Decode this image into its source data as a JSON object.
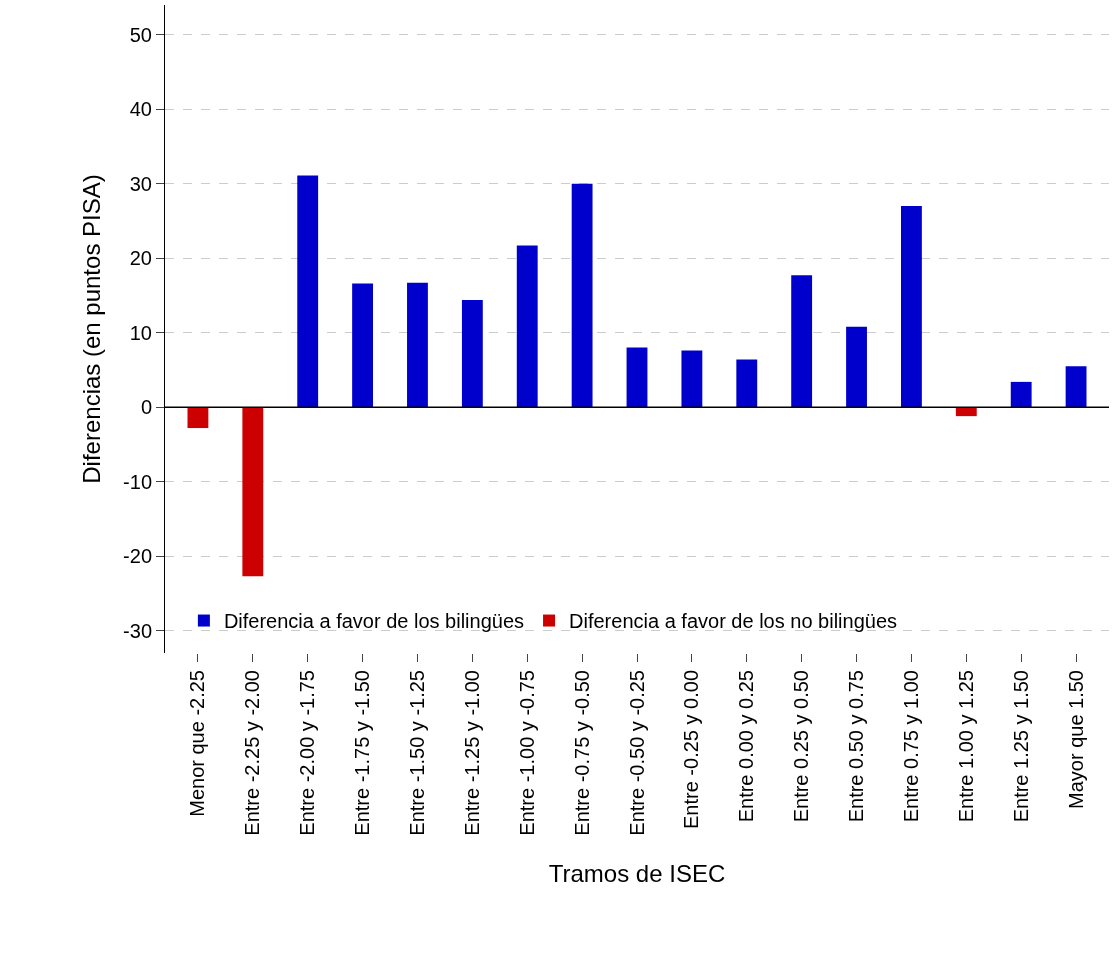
{
  "chart_data": {
    "type": "bar",
    "xlabel": "Tramos de ISEC",
    "ylabel": "Diferencias (en puntos PISA)",
    "categories": [
      "Menor que -2.25",
      "Entre -2.25 y -2.00",
      "Entre -2.00 y -1.75",
      "Entre -1.75 y -1.50",
      "Entre -1.50 y -1.25",
      "Entre -1.25 y -1.00",
      "Entre -1.00 y -0.75",
      "Entre -0.75 y -0.50",
      "Entre -0.50 y -0.25",
      "Entre -0.25 y 0.00",
      "Entre 0.00 y 0.25",
      "Entre 0.25 y 0.50",
      "Entre 0.50 y 0.75",
      "Entre 0.75 y 1.00",
      "Entre 1.00 y 1.25",
      "Entre 1.25 y 1.50",
      "Mayor que 1.50"
    ],
    "series": [
      {
        "name": "Diferencia a favor de los bilingües",
        "color": "#0000cc",
        "values": [
          null,
          null,
          31.1,
          16.6,
          16.7,
          14.4,
          21.7,
          30.0,
          8.0,
          7.6,
          6.4,
          17.7,
          10.8,
          27.0,
          null,
          3.4,
          5.5
        ]
      },
      {
        "name": "Diferencia a favor de los no bilingües",
        "color": "#cc0000",
        "values": [
          -2.8,
          -22.7,
          null,
          null,
          null,
          null,
          null,
          null,
          null,
          null,
          null,
          null,
          null,
          null,
          -1.2,
          null,
          null
        ]
      }
    ],
    "ylim": [
      -33,
      54
    ],
    "yticks": [
      -30,
      -20,
      -10,
      0,
      10,
      20,
      30,
      40,
      50
    ],
    "grid": "y",
    "ref_lines": [
      {
        "axis": "y",
        "value": 0,
        "color": "#000000",
        "line_style": "solid"
      }
    ],
    "legend": "bottom"
  }
}
